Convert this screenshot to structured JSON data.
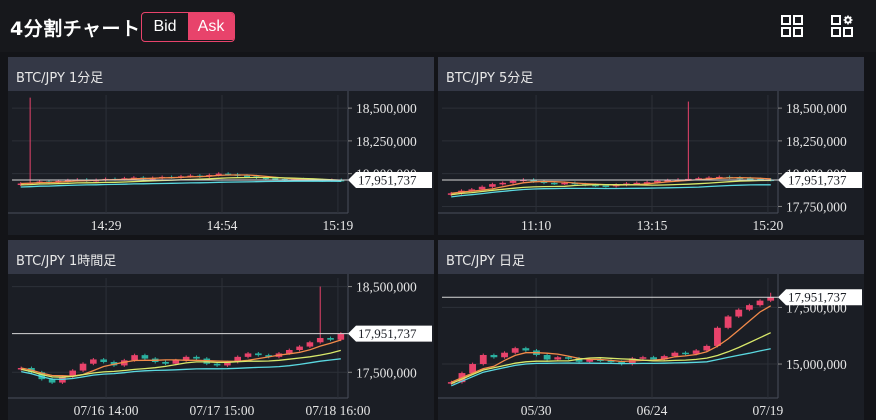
{
  "app": {
    "title": "4分割チャート"
  },
  "price_type": {
    "options": [
      "Bid",
      "Ask"
    ],
    "selected": "Ask"
  },
  "toolbar": {
    "icons": [
      "grid-layout-icon",
      "grid-settings-icon"
    ]
  },
  "colors": {
    "accent": "#e8436b",
    "up": "#e8436b",
    "down": "#2bb0a0",
    "ma_short": "#f28a4a",
    "ma_mid": "#d8e86a",
    "ma_long": "#5ad8e0"
  },
  "panels": [
    {
      "id": "1m",
      "title": "BTC/JPY  1分足",
      "y_ticks": [
        "18,500,000",
        "18,250,000",
        "18,000,000"
      ],
      "x_ticks": [
        "14:29",
        "14:54",
        "15:19"
      ],
      "current_price": "17,951,737"
    },
    {
      "id": "5m",
      "title": "BTC/JPY  5分足",
      "y_ticks": [
        "18,500,000",
        "18,250,000",
        "18,000,000",
        "17,750,000"
      ],
      "x_ticks": [
        "11:10",
        "13:15",
        "15:20"
      ],
      "current_price": "17,951,737"
    },
    {
      "id": "1h",
      "title": "BTC/JPY  1時間足",
      "y_ticks": [
        "18,500,000",
        "17,500,000"
      ],
      "x_ticks": [
        "07/16 14:00",
        "07/17 15:00",
        "07/18 16:00"
      ],
      "current_price": "17,951,737"
    },
    {
      "id": "1d",
      "title": "BTC/JPY  日足",
      "y_ticks": [
        "17,500,000",
        "15,000,000"
      ],
      "x_ticks": [
        "05/30",
        "06/24",
        "07/19"
      ],
      "current_price": "17,951,737"
    }
  ],
  "chart_data": [
    {
      "type": "candlestick",
      "title": "BTC/JPY  1分足",
      "ylim": [
        17700000,
        18600000
      ],
      "y_ticks": [
        18500000,
        18250000,
        18000000
      ],
      "x_ticks": [
        "14:29",
        "14:54",
        "15:19"
      ],
      "current_price": 17951737,
      "close": [
        17925000,
        17930000,
        17940000,
        17935000,
        17945000,
        17950000,
        17955000,
        17948000,
        17952000,
        17960000,
        17958000,
        17965000,
        17970000,
        17962000,
        17968000,
        17975000,
        17972000,
        17980000,
        17985000,
        17978000,
        17990000,
        18000000,
        17995000,
        17985000,
        17980000,
        17970000,
        17965000,
        17960000,
        17955000,
        17958000,
        17952000,
        17950000,
        17948000,
        17952000,
        17951737
      ],
      "wick_high_index": 1,
      "wick_high": 18580000
    },
    {
      "type": "candlestick",
      "title": "BTC/JPY  5分足",
      "ylim": [
        17700000,
        18600000
      ],
      "y_ticks": [
        18500000,
        18250000,
        18000000,
        17750000
      ],
      "x_ticks": [
        "11:10",
        "13:15",
        "15:20"
      ],
      "current_price": 17951737,
      "close": [
        17850000,
        17870000,
        17880000,
        17900000,
        17920000,
        17930000,
        17945000,
        17955000,
        17940000,
        17930000,
        17925000,
        17930000,
        17920000,
        17915000,
        17910000,
        17905000,
        17915000,
        17925000,
        17930000,
        17935000,
        17945000,
        17950000,
        17955000,
        17960000,
        17965000,
        17970000,
        17975000,
        17970000,
        17965000,
        17960000,
        17955000,
        17951737
      ],
      "wick_high_index": 23,
      "wick_high": 18550000
    },
    {
      "type": "candlestick",
      "title": "BTC/JPY  1時間足",
      "ylim": [
        17200000,
        18600000
      ],
      "y_ticks": [
        18500000,
        17500000
      ],
      "x_ticks": [
        "07/16 14:00",
        "07/17 15:00",
        "07/18 16:00"
      ],
      "current_price": 17951737,
      "close": [
        17550000,
        17500000,
        17420000,
        17380000,
        17450000,
        17520000,
        17600000,
        17650000,
        17620000,
        17580000,
        17640000,
        17700000,
        17660000,
        17620000,
        17600000,
        17640000,
        17680000,
        17660000,
        17600000,
        17580000,
        17620000,
        17680000,
        17720000,
        17700000,
        17680000,
        17720000,
        17760000,
        17800000,
        17850000,
        17900000,
        17880000,
        17951737
      ],
      "wick_high_index": 29,
      "wick_high": 18500000
    },
    {
      "type": "candlestick",
      "title": "BTC/JPY  日足",
      "ylim": [
        13500000,
        18800000
      ],
      "y_ticks": [
        17500000,
        15000000
      ],
      "x_ticks": [
        "05/30",
        "06/24",
        "07/19"
      ],
      "current_price": 17951737,
      "close": [
        14200000,
        14600000,
        15000000,
        15400000,
        15300000,
        15500000,
        15700000,
        15600000,
        15400000,
        15200000,
        15300000,
        15250000,
        15100000,
        15200000,
        15150000,
        15100000,
        15000000,
        15250000,
        15300000,
        15200000,
        15350000,
        15500000,
        15450000,
        15600000,
        15800000,
        16600000,
        17100000,
        17400000,
        17600000,
        17800000,
        17951737
      ],
      "wick_high_index": 30,
      "wick_high": 18150000
    }
  ]
}
